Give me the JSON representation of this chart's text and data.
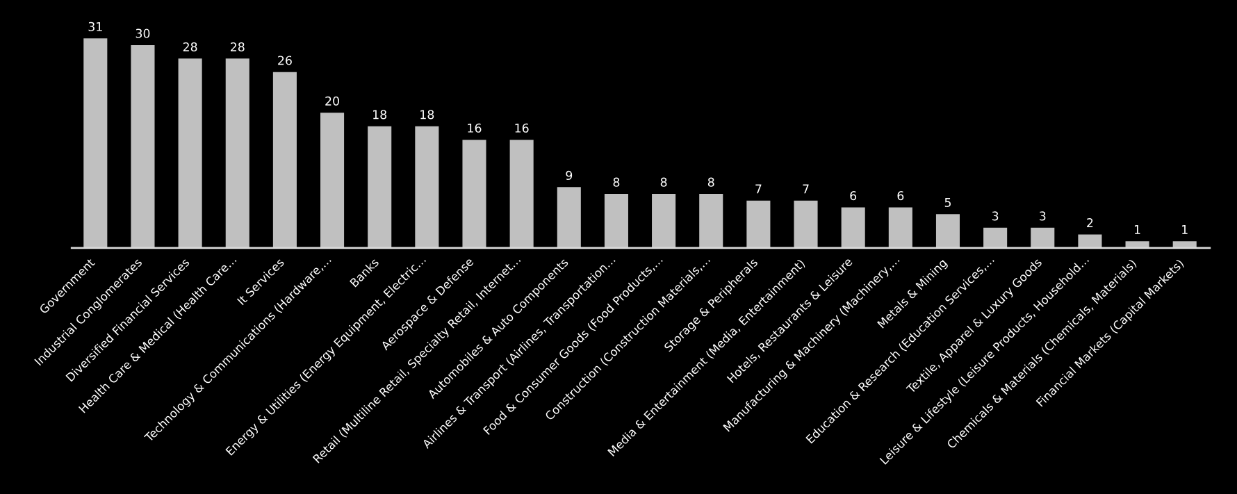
{
  "chart_data": {
    "type": "bar",
    "categories": [
      "Government",
      "Industrial Conglomerates",
      "Diversified Financial Services",
      "Health Care & Medical (Health Care…",
      "It Services",
      "Technology & Communications (Hardware,…",
      "Banks",
      "Energy & Utilities (Energy Equipment, Electric…",
      "Aerospace & Defense",
      "Retail (Multiline Retail, Specialty Retail, Internet…",
      "Automobiles & Auto Components",
      "Airlines & Transport (Airlines, Transportation…",
      "Food & Consumer Goods (Food Products,…",
      "Construction (Construction Materials,…",
      "Storage & Peripherals",
      "Media & Entertainment (Media, Entertainment)",
      "Hotels, Restaurants & Leisure",
      "Manufacturing & Machinery (Machinery,…",
      "Metals & Mining",
      "Education & Research (Education Services,…",
      "Textile, Apparel & Luxury Goods",
      "Leisure & Lifestyle (Leisure Products, Household…",
      "Chemicals & Materials (Chemicals, Materials)",
      "Financial Markets (Capital Markets)"
    ],
    "values": [
      31,
      30,
      28,
      28,
      26,
      20,
      18,
      18,
      16,
      16,
      9,
      8,
      8,
      8,
      7,
      7,
      6,
      6,
      5,
      3,
      3,
      2,
      1,
      1
    ],
    "color": "#c0c0c0",
    "data_labels": true,
    "tick_labels": "x"
  }
}
